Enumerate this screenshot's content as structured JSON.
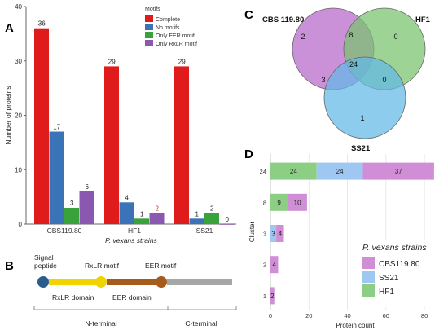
{
  "panels": {
    "A": "A",
    "B": "B",
    "C": "C",
    "D": "D"
  },
  "colors": {
    "complete": "#e01b1b",
    "no_motifs": "#3a73b8",
    "only_eer": "#3aa23a",
    "only_rxlr": "#8a58b0",
    "cbs": "#cf8ed6",
    "ss21": "#9ec8f2",
    "hf1": "#8ccf84",
    "venn_cbs": "#b766c9",
    "venn_hf1": "#79c26e",
    "venn_ss21": "#63b8e8",
    "gene_domain_yellow": "#f0d400",
    "gene_domain_brown": "#a65a1c",
    "gene_domain_gray": "#a6a6a6",
    "gene_peptide": "#2a5d8c"
  },
  "chart_data": [
    {
      "id": "A",
      "type": "bar",
      "categories": [
        "CBS119.80",
        "HF1",
        "SS21"
      ],
      "series": [
        {
          "name": "Complete",
          "values": [
            36,
            29,
            29
          ],
          "label_color": "#222222"
        },
        {
          "name": "No motifs",
          "values": [
            17,
            4,
            1
          ],
          "label_color": "#222222"
        },
        {
          "name": "Only EER motif",
          "values": [
            3,
            1,
            2
          ],
          "label_color": "#222222"
        },
        {
          "name": "Only RxLR motif",
          "values": [
            6,
            2,
            0
          ],
          "label_color": "#222222"
        }
      ],
      "value_label_colors": [
        [
          "#222222",
          "#222222",
          "#222222",
          "#222222"
        ],
        [
          "#222222",
          "#222222",
          "#222222",
          "#c0392b"
        ],
        [
          "#222222",
          "#222222",
          "#222222",
          "#222222"
        ]
      ],
      "legend_title": "Motifs",
      "legend_position": "top-right",
      "xlabel": "P. vexans strains",
      "ylabel": "Number of proteins",
      "ylim": [
        0,
        40
      ],
      "yticks": [
        0,
        10,
        20,
        30,
        40
      ],
      "grid": false
    },
    {
      "id": "C",
      "type": "venn",
      "sets": [
        "CBS 119.80",
        "HF1",
        "SS21"
      ],
      "regions": {
        "only_cbs": 2,
        "only_hf1": 0,
        "only_ss21": 1,
        "cbs_hf1": 8,
        "cbs_ss21": 3,
        "hf1_ss21": 0,
        "all": 24
      }
    },
    {
      "id": "D",
      "type": "bar",
      "orientation": "horizontal",
      "stacked": true,
      "categories": [
        "24",
        "8",
        "3",
        "2",
        "1"
      ],
      "series": [
        {
          "name": "CBS119.80",
          "values": [
            37,
            10,
            4,
            4,
            2
          ]
        },
        {
          "name": "SS21",
          "values": [
            24,
            0,
            3,
            0,
            0
          ]
        },
        {
          "name": "HF1",
          "values": [
            24,
            9,
            0,
            0,
            0
          ]
        }
      ],
      "stack_order": [
        "HF1",
        "SS21",
        "CBS119.80"
      ],
      "value_labels": {
        "24": [
          "24",
          "24",
          "37"
        ],
        "8": [
          "9",
          "10"
        ],
        "3": [
          "3",
          "4"
        ],
        "2": [
          "4"
        ],
        "1": [
          "2"
        ]
      },
      "xlabel": "Protein count",
      "ylabel": "Cluster",
      "xlim": [
        0,
        88
      ],
      "xticks": [
        0,
        20,
        40,
        60,
        80
      ],
      "legend_title": "P. vexans strains",
      "legend_position": "bottom-right",
      "grid": true
    }
  ],
  "gene_model": {
    "labels": {
      "signal": "Signal\npeptide",
      "rxlr_motif": "RxLR motif",
      "eer_motif": "EER motif",
      "rxlr_domain": "RxLR domain",
      "eer_domain": "EER domain",
      "n_terminal": "N-terminal",
      "c_terminal": "C-terminal"
    }
  }
}
